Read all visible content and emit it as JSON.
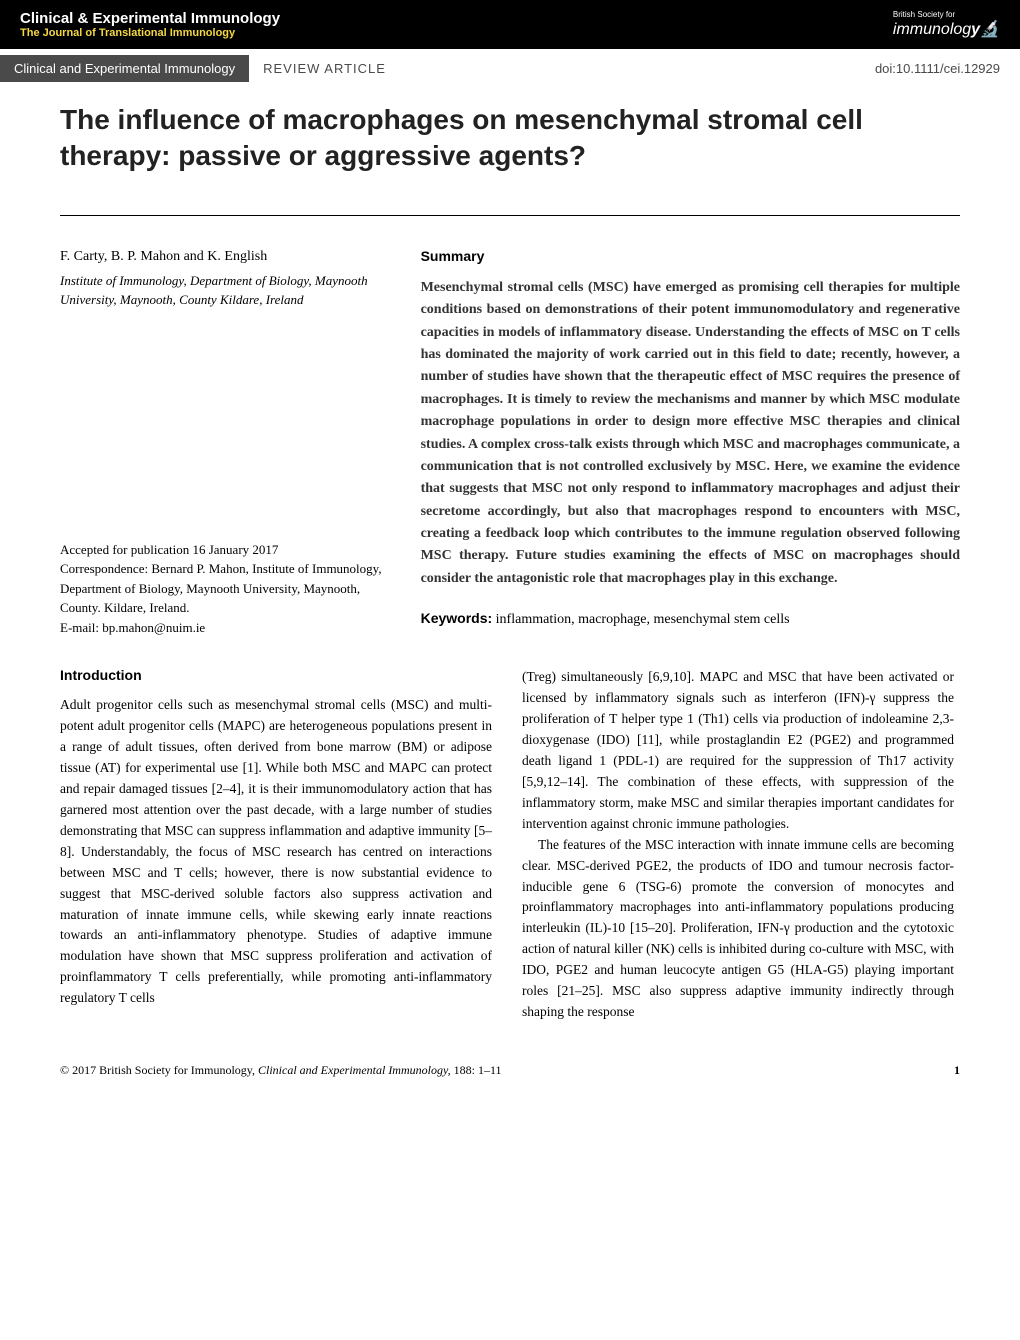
{
  "banner": {
    "journal_title": "Clinical & Experimental Immunology",
    "journal_subtitle": "The Journal of Translational Immunology",
    "society_text": "British Society for",
    "immuno_logo": "immunolog",
    "logo_y": "y"
  },
  "sub_banner": {
    "title": "Clinical and Experimental Immunology",
    "type": "REVIEW ARTICLE",
    "doi": "doi:10.1111/cei.12929"
  },
  "article": {
    "title": "The influence of macrophages on mesenchymal stromal cell therapy: passive or aggressive agents?"
  },
  "authors": {
    "names": "F. Carty, B. P. Mahon and K. English",
    "affiliation": "Institute of Immunology, Department of Biology, Maynooth University, Maynooth, County Kildare, Ireland"
  },
  "meta": {
    "accepted": "Accepted for publication 16 January 2017",
    "correspondence": "Correspondence: Bernard P. Mahon, Institute of Immunology, Department of Biology, Maynooth University, Maynooth, County. Kildare, Ireland.",
    "email": "E-mail: bp.mahon@nuim.ie"
  },
  "summary": {
    "heading": "Summary",
    "text": "Mesenchymal stromal cells (MSC) have emerged as promising cell therapies for multiple conditions based on demonstrations of their potent immunomodulatory and regenerative capacities in models of inflammatory disease. Understanding the effects of MSC on T cells has dominated the majority of work carried out in this field to date; recently, however, a number of studies have shown that the therapeutic effect of MSC requires the presence of macrophages. It is timely to review the mechanisms and manner by which MSC modulate macrophage populations in order to design more effective MSC therapies and clinical studies. A complex cross-talk exists through which MSC and macrophages communicate, a communication that is not controlled exclusively by MSC. Here, we examine the evidence that suggests that MSC not only respond to inflammatory macrophages and adjust their secretome accordingly, but also that macrophages respond to encounters with MSC, creating a feedback loop which contributes to the immune regulation observed following MSC therapy. Future studies examining the effects of MSC on macrophages should consider the antagonistic role that macrophages play in this exchange."
  },
  "keywords": {
    "label": "Keywords:",
    "text": " inflammation, macrophage, mesenchymal stem cells"
  },
  "introduction": {
    "heading": "Introduction",
    "col1": "Adult progenitor cells such as mesenchymal stromal cells (MSC) and multi-potent adult progenitor cells (MAPC) are heterogeneous populations present in a range of adult tissues, often derived from bone marrow (BM) or adipose tissue (AT) for experimental use [1]. While both MSC and MAPC can protect and repair damaged tissues [2–4], it is their immunomodulatory action that has garnered most attention over the past decade, with a large number of studies demonstrating that MSC can suppress inflammation and adaptive immunity [5–8]. Understandably, the focus of MSC research has centred on interactions between MSC and T cells; however, there is now substantial evidence to suggest that MSC-derived soluble factors also suppress activation and maturation of innate immune cells, while skewing early innate reactions towards an anti-inflammatory phenotype. Studies of adaptive immune modulation have shown that MSC suppress proliferation and activation of proinflammatory T cells preferentially, while promoting anti-inflammatory regulatory T cells",
    "col2_p1": "(Treg) simultaneously [6,9,10]. MAPC and MSC that have been activated or licensed by inflammatory signals such as interferon (IFN)-γ suppress the proliferation of T helper type 1 (Th1) cells via production of indoleamine 2,3-dioxygenase (IDO) [11], while prostaglandin E2 (PGE2) and programmed death ligand 1 (PDL-1) are required for the suppression of Th17 activity [5,9,12–14]. The combination of these effects, with suppression of the inflammatory storm, make MSC and similar therapies important candidates for intervention against chronic immune pathologies.",
    "col2_p2": "The features of the MSC interaction with innate immune cells are becoming clear. MSC-derived PGE2, the products of IDO and tumour necrosis factor-inducible gene 6 (TSG-6) promote the conversion of monocytes and proinflammatory macrophages into anti-inflammatory populations producing interleukin (IL)-10 [15–20]. Proliferation, IFN-γ production and the cytotoxic action of natural killer (NK) cells is inhibited during co-culture with MSC, with IDO, PGE2 and human leucocyte antigen G5 (HLA-G5) playing important roles [21–25]. MSC also suppress adaptive immunity indirectly through shaping the response"
  },
  "footer": {
    "copyright": "© 2017 British Society for Immunology, ",
    "journal_ref": "Clinical and Experimental Immunology, ",
    "pages": "188: 1–11",
    "page_num": "1"
  }
}
